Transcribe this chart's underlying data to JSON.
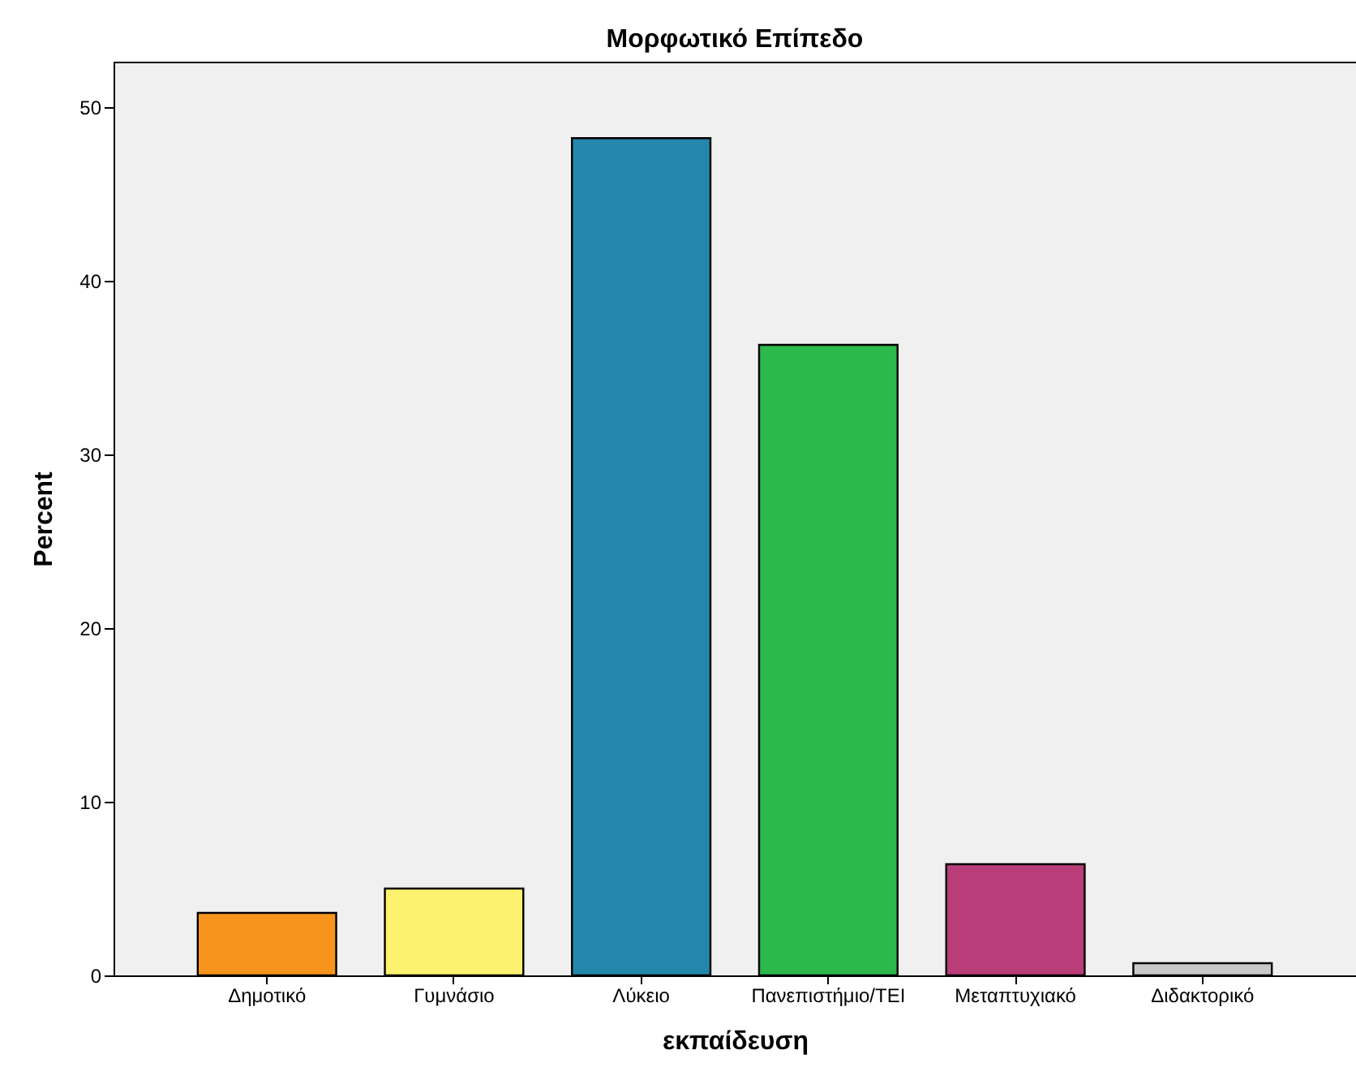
{
  "chart_data": {
    "type": "bar",
    "title": "Μορφωτικό Επίπεδο",
    "xlabel": "εκπαίδευση",
    "ylabel": "Percent",
    "categories": [
      "Δημοτικό",
      "Γυμνάσιο",
      "Λύκειο",
      "Πανεπιστήμιο/ΤΕΙ",
      "Μεταπτυχιακό",
      "Διδακτορικό"
    ],
    "values": [
      3.6,
      5.0,
      48.2,
      36.3,
      6.4,
      0.7
    ],
    "colors": [
      "#f7941d",
      "#fdf26f",
      "#2487ab",
      "#2db84b",
      "#b93d79",
      "#c8c8c8"
    ],
    "ylim": [
      0,
      52.6
    ],
    "yticks": [
      0,
      10,
      20,
      30,
      40,
      50
    ],
    "grid": false,
    "legend": false
  }
}
